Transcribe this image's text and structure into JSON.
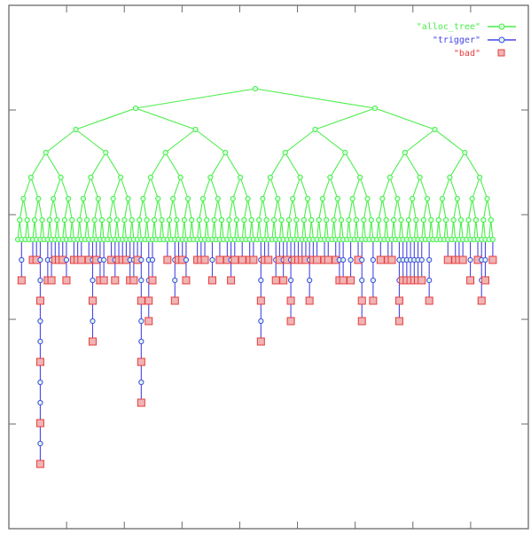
{
  "chart_data": {
    "type": "scatter",
    "title": "",
    "xlabel": "",
    "ylabel": "",
    "grid": false,
    "legend_position": "top-right",
    "colors": {
      "alloc_tree": "#49ee49",
      "trigger": "#4646e6",
      "bad": "#e63c3c",
      "node_fill": "#d7fde0",
      "box_fill": "#f0b4b4"
    },
    "series": [
      {
        "name": "\"alloc_tree\"",
        "marker": "circle",
        "color": "#49ee49"
      },
      {
        "name": "\"trigger\"",
        "marker": "circle",
        "color": "#4646e6"
      },
      {
        "name": "\"bad\"",
        "marker": "square",
        "color": "#e63c3c"
      }
    ],
    "tree": {
      "depth": 7,
      "leaf_count": 128,
      "deep_chains": [
        {
          "leaf_index": 6,
          "length": 11
        },
        {
          "leaf_index": 33,
          "length": 8
        },
        {
          "leaf_index": 65,
          "length": 5
        },
        {
          "leaf_index": 73,
          "length": 4
        },
        {
          "leaf_index": 20,
          "length": 5
        },
        {
          "leaf_index": 35,
          "length": 4
        },
        {
          "leaf_index": 92,
          "length": 4
        },
        {
          "leaf_index": 102,
          "length": 4
        },
        {
          "leaf_index": 110,
          "length": 3
        },
        {
          "leaf_index": 124,
          "length": 3
        }
      ]
    },
    "legend": [
      {
        "label": "\"alloc_tree\"",
        "marker": "circle",
        "color": "#49ee49"
      },
      {
        "label": "\"trigger\"",
        "marker": "circle",
        "color": "#4646e6"
      },
      {
        "label": "\"bad\"",
        "marker": "square",
        "color": "#e63c3c"
      }
    ]
  }
}
